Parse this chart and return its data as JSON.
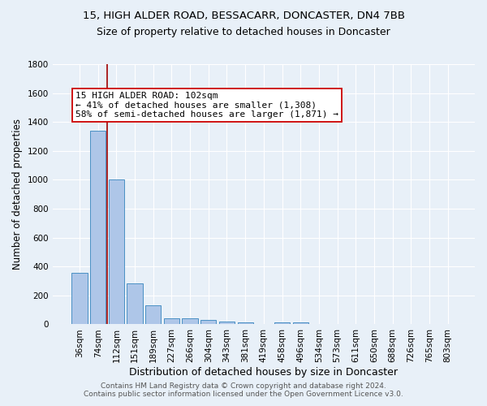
{
  "title": "15, HIGH ALDER ROAD, BESSACARR, DONCASTER, DN4 7BB",
  "subtitle": "Size of property relative to detached houses in Doncaster",
  "xlabel": "Distribution of detached houses by size in Doncaster",
  "ylabel": "Number of detached properties",
  "categories": [
    "36sqm",
    "74sqm",
    "112sqm",
    "151sqm",
    "189sqm",
    "227sqm",
    "266sqm",
    "304sqm",
    "343sqm",
    "381sqm",
    "419sqm",
    "458sqm",
    "496sqm",
    "534sqm",
    "573sqm",
    "611sqm",
    "650sqm",
    "688sqm",
    "726sqm",
    "765sqm",
    "803sqm"
  ],
  "values": [
    355,
    1340,
    1005,
    285,
    130,
    42,
    42,
    28,
    18,
    13,
    0,
    13,
    13,
    0,
    0,
    0,
    0,
    0,
    0,
    0,
    0
  ],
  "bar_color": "#aec6e8",
  "bar_edge_color": "#4a90c4",
  "vline_color": "#a00000",
  "annotation_text": "15 HIGH ALDER ROAD: 102sqm\n← 41% of detached houses are smaller (1,308)\n58% of semi-detached houses are larger (1,871) →",
  "annotation_box_color": "#ffffff",
  "annotation_box_edge": "#cc0000",
  "background_color": "#e8f0f8",
  "plot_bg_color": "#e8f0f8",
  "ylim": [
    0,
    1800
  ],
  "footer": "Contains HM Land Registry data © Crown copyright and database right 2024.\nContains public sector information licensed under the Open Government Licence v3.0.",
  "title_fontsize": 9.5,
  "subtitle_fontsize": 9,
  "xlabel_fontsize": 9,
  "ylabel_fontsize": 8.5,
  "tick_fontsize": 7.5,
  "annotation_fontsize": 8
}
